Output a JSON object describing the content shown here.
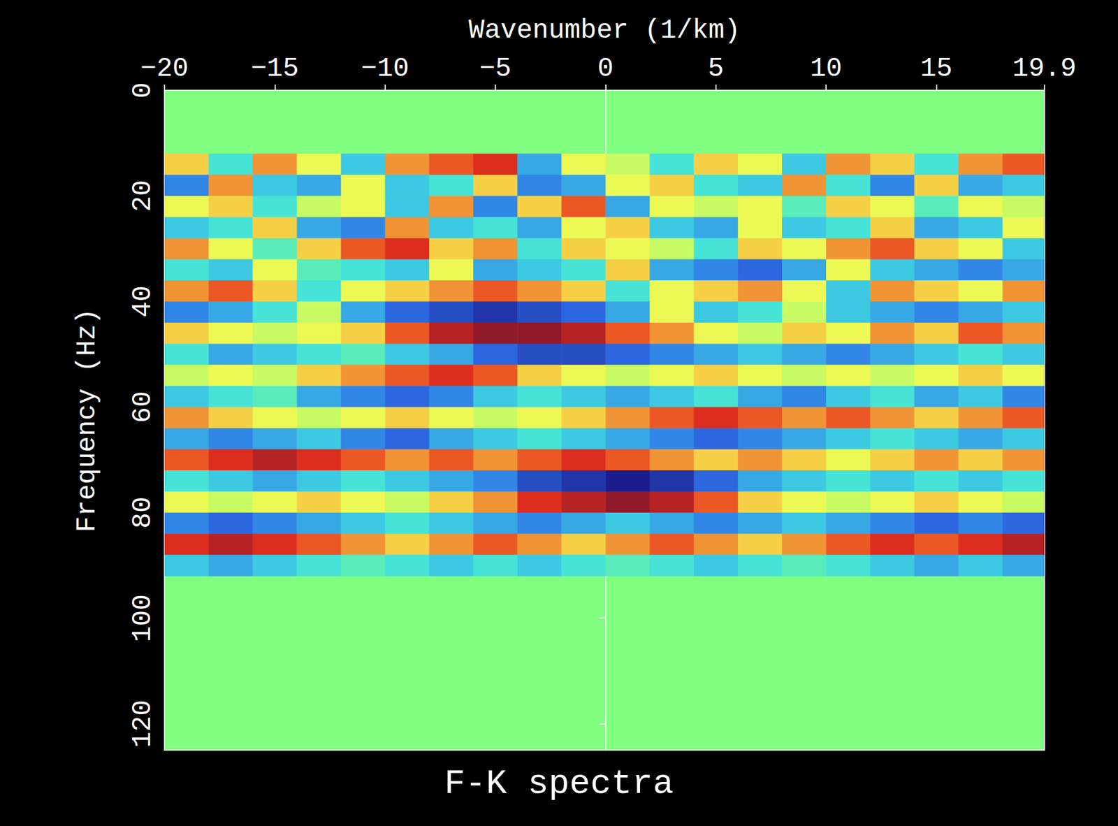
{
  "chart_data": {
    "type": "heatmap",
    "title": "F-K spectra",
    "x_label": "Wavenumber (1/km)",
    "y_label": "Frequency (Hz)",
    "xlim": [
      -20,
      19.9
    ],
    "xticks": [
      -20,
      -15,
      -10,
      -5,
      0,
      5,
      10,
      15
    ],
    "ylim": [
      0,
      125
    ],
    "yticks": [
      0,
      20,
      40,
      60,
      80,
      100,
      120
    ],
    "grid": false,
    "value_range": [
      -1,
      1
    ],
    "x": [
      -19,
      -17,
      -15,
      -13,
      -11,
      -9,
      -7,
      -5,
      -3,
      -1,
      1,
      3,
      5,
      7,
      9,
      11,
      13,
      15,
      17,
      19
    ],
    "y": [
      14,
      18,
      22,
      26,
      30,
      34,
      38,
      42,
      46,
      50,
      54,
      58,
      62,
      66,
      70,
      74,
      78,
      82,
      86,
      90
    ],
    "cells": [
      [
        0.4,
        -0.3,
        0.5,
        0.3,
        -0.4,
        0.5,
        0.6,
        0.7,
        -0.5,
        0.3,
        0.2,
        -0.3,
        0.4,
        0.3,
        -0.4,
        0.5,
        0.4,
        -0.3,
        0.5,
        0.6
      ],
      [
        -0.6,
        0.5,
        -0.4,
        -0.5,
        0.3,
        -0.4,
        -0.3,
        0.4,
        -0.6,
        -0.5,
        0.3,
        0.4,
        -0.3,
        -0.4,
        0.5,
        -0.3,
        -0.6,
        0.4,
        -0.5,
        -0.4
      ],
      [
        0.3,
        0.4,
        -0.3,
        0.2,
        0.3,
        -0.4,
        0.5,
        -0.6,
        0.4,
        0.6,
        -0.5,
        0.3,
        0.2,
        0.3,
        -0.2,
        0.4,
        0.3,
        -0.2,
        0.3,
        0.2
      ],
      [
        -0.4,
        -0.3,
        0.4,
        -0.5,
        -0.6,
        0.5,
        -0.4,
        -0.3,
        -0.5,
        0.3,
        0.4,
        -0.4,
        -0.5,
        0.3,
        -0.4,
        -0.3,
        0.4,
        -0.5,
        -0.4,
        0.3
      ],
      [
        0.5,
        0.3,
        -0.2,
        0.4,
        0.6,
        0.7,
        0.4,
        0.5,
        -0.3,
        0.4,
        0.3,
        0.2,
        -0.3,
        0.4,
        0.3,
        0.5,
        0.6,
        0.4,
        0.3,
        -0.4
      ],
      [
        -0.3,
        -0.4,
        0.3,
        -0.2,
        -0.3,
        -0.4,
        0.3,
        -0.5,
        -0.4,
        -0.3,
        0.4,
        -0.5,
        -0.6,
        -0.7,
        -0.5,
        0.3,
        -0.4,
        -0.5,
        -0.6,
        -0.5
      ],
      [
        0.5,
        0.6,
        0.4,
        -0.3,
        0.3,
        0.4,
        0.5,
        0.6,
        0.5,
        0.4,
        -0.3,
        0.3,
        0.4,
        0.5,
        0.3,
        -0.4,
        0.5,
        0.4,
        0.3,
        0.5
      ],
      [
        -0.6,
        -0.5,
        -0.3,
        0.2,
        -0.5,
        -0.7,
        -0.8,
        -0.9,
        -0.8,
        -0.7,
        -0.5,
        0.3,
        -0.4,
        -0.3,
        0.2,
        -0.4,
        -0.5,
        -0.6,
        -0.5,
        -0.4
      ],
      [
        0.4,
        0.3,
        0.2,
        0.3,
        0.4,
        0.6,
        0.8,
        0.9,
        0.9,
        0.8,
        0.6,
        0.5,
        0.3,
        0.2,
        0.4,
        0.3,
        0.5,
        0.4,
        0.6,
        0.5
      ],
      [
        -0.3,
        -0.5,
        -0.4,
        -0.3,
        -0.2,
        -0.4,
        -0.5,
        -0.7,
        -0.8,
        -0.8,
        -0.7,
        -0.6,
        -0.5,
        -0.4,
        -0.5,
        -0.6,
        -0.5,
        -0.4,
        -0.3,
        -0.4
      ],
      [
        0.2,
        0.3,
        0.2,
        0.4,
        0.5,
        0.6,
        0.7,
        0.6,
        0.4,
        0.3,
        0.2,
        0.3,
        0.4,
        0.3,
        0.2,
        0.3,
        0.2,
        0.3,
        0.4,
        0.3
      ],
      [
        -0.4,
        -0.3,
        -0.2,
        -0.5,
        -0.6,
        -0.7,
        -0.6,
        -0.4,
        -0.3,
        -0.4,
        -0.5,
        -0.4,
        -0.3,
        -0.5,
        -0.6,
        -0.4,
        -0.3,
        -0.5,
        -0.4,
        -0.6
      ],
      [
        0.5,
        0.4,
        0.3,
        0.2,
        0.3,
        0.4,
        0.3,
        0.2,
        0.3,
        0.4,
        0.5,
        0.6,
        0.7,
        0.6,
        0.5,
        0.6,
        0.5,
        0.4,
        0.5,
        0.6
      ],
      [
        -0.5,
        -0.6,
        -0.5,
        -0.4,
        -0.6,
        -0.7,
        -0.5,
        -0.4,
        -0.3,
        -0.4,
        -0.5,
        -0.6,
        -0.7,
        -0.6,
        -0.5,
        -0.4,
        -0.3,
        -0.4,
        -0.5,
        -0.4
      ],
      [
        0.6,
        0.7,
        0.8,
        0.7,
        0.6,
        0.5,
        0.6,
        0.5,
        0.6,
        0.7,
        0.6,
        0.5,
        0.4,
        0.5,
        0.4,
        0.3,
        0.4,
        0.5,
        0.4,
        0.5
      ],
      [
        -0.3,
        -0.4,
        -0.5,
        -0.4,
        -0.3,
        -0.4,
        -0.5,
        -0.6,
        -0.8,
        -0.9,
        -1.0,
        -0.9,
        -0.7,
        -0.5,
        -0.4,
        -0.3,
        -0.4,
        -0.3,
        -0.4,
        -0.3
      ],
      [
        0.3,
        0.2,
        0.3,
        0.4,
        0.3,
        0.2,
        0.4,
        0.5,
        0.7,
        0.8,
        0.9,
        0.8,
        0.6,
        0.4,
        0.3,
        0.2,
        0.3,
        0.4,
        0.3,
        0.2
      ],
      [
        -0.6,
        -0.7,
        -0.6,
        -0.5,
        -0.4,
        -0.3,
        -0.4,
        -0.5,
        -0.6,
        -0.5,
        -0.4,
        -0.5,
        -0.6,
        -0.5,
        -0.4,
        -0.5,
        -0.6,
        -0.7,
        -0.6,
        -0.7
      ],
      [
        0.7,
        0.8,
        0.7,
        0.6,
        0.5,
        0.4,
        0.5,
        0.6,
        0.5,
        0.4,
        0.5,
        0.6,
        0.5,
        0.4,
        0.5,
        0.6,
        0.7,
        0.6,
        0.7,
        0.8
      ],
      [
        -0.4,
        -0.5,
        -0.4,
        -0.3,
        -0.2,
        -0.3,
        -0.4,
        -0.3,
        -0.4,
        -0.3,
        -0.2,
        -0.3,
        -0.4,
        -0.3,
        -0.2,
        -0.3,
        -0.4,
        -0.5,
        -0.4,
        -0.5
      ]
    ]
  }
}
